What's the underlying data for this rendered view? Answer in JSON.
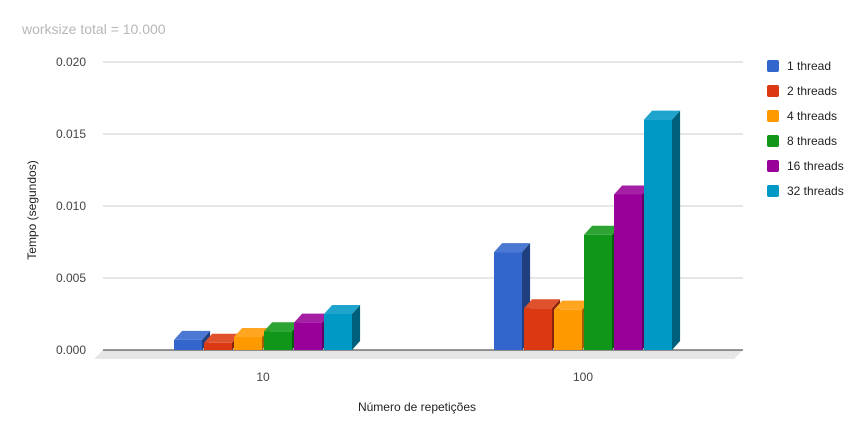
{
  "chart_data": {
    "type": "bar",
    "title": "worksize total = 10.000",
    "xlabel": "Número de repetições",
    "ylabel": "Tempo (segundos)",
    "categories": [
      "10",
      "100"
    ],
    "ylim": [
      0,
      0.02
    ],
    "yticks": [
      "0.000",
      "0.005",
      "0.010",
      "0.015",
      "0.020"
    ],
    "grid": true,
    "legend_position": "right",
    "series": [
      {
        "name": "1 thread",
        "values": [
          0.0007,
          0.0068
        ],
        "color": "#3366cc"
      },
      {
        "name": "2 threads",
        "values": [
          0.0005,
          0.0029
        ],
        "color": "#dc3912"
      },
      {
        "name": "4 threads",
        "values": [
          0.0009,
          0.0028
        ],
        "color": "#ff9900"
      },
      {
        "name": "8 threads",
        "values": [
          0.0013,
          0.008
        ],
        "color": "#109618"
      },
      {
        "name": "16 threads",
        "values": [
          0.0019,
          0.0108
        ],
        "color": "#990099"
      },
      {
        "name": "32 threads",
        "values": [
          0.0025,
          0.016
        ],
        "color": "#0099c6"
      }
    ]
  }
}
